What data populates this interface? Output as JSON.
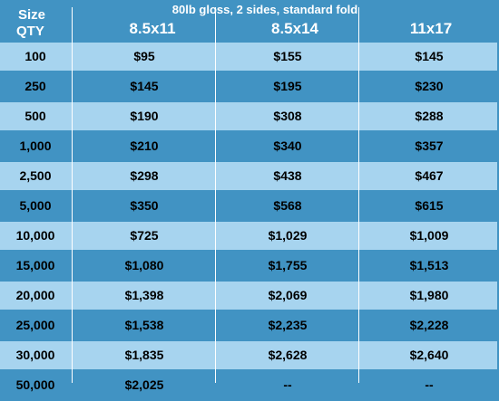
{
  "header": {
    "size_label": "Size",
    "qty_label": "QTY",
    "subtitle": "80lb gloss, 2 sides, standard fold",
    "columns": [
      "8.5x11",
      "8.5x14",
      "11x17"
    ]
  },
  "rows": [
    {
      "qty": "100",
      "c1": "$95",
      "c2": "$155",
      "c3": "$145"
    },
    {
      "qty": "250",
      "c1": "$145",
      "c2": "$195",
      "c3": "$230"
    },
    {
      "qty": "500",
      "c1": "$190",
      "c2": "$308",
      "c3": "$288"
    },
    {
      "qty": "1,000",
      "c1": "$210",
      "c2": "$340",
      "c3": "$357"
    },
    {
      "qty": "2,500",
      "c1": "$298",
      "c2": "$438",
      "c3": "$467"
    },
    {
      "qty": "5,000",
      "c1": "$350",
      "c2": "$568",
      "c3": "$615"
    },
    {
      "qty": "10,000",
      "c1": "$725",
      "c2": "$1,029",
      "c3": "$1,009"
    },
    {
      "qty": "15,000",
      "c1": "$1,080",
      "c2": "$1,755",
      "c3": "$1,513"
    },
    {
      "qty": "20,000",
      "c1": "$1,398",
      "c2": "$2,069",
      "c3": "$1,980"
    },
    {
      "qty": "25,000",
      "c1": "$1,538",
      "c2": "$2,235",
      "c3": "$2,228"
    },
    {
      "qty": "30,000",
      "c1": "$1,835",
      "c2": "$2,628",
      "c3": "$2,640"
    },
    {
      "qty": "50,000",
      "c1": "$2,025",
      "c2": "--",
      "c3": "--"
    }
  ],
  "colors": {
    "light_row": "#a7d4ef",
    "dark_row": "#4193c3",
    "header_text": "#ffffff"
  }
}
